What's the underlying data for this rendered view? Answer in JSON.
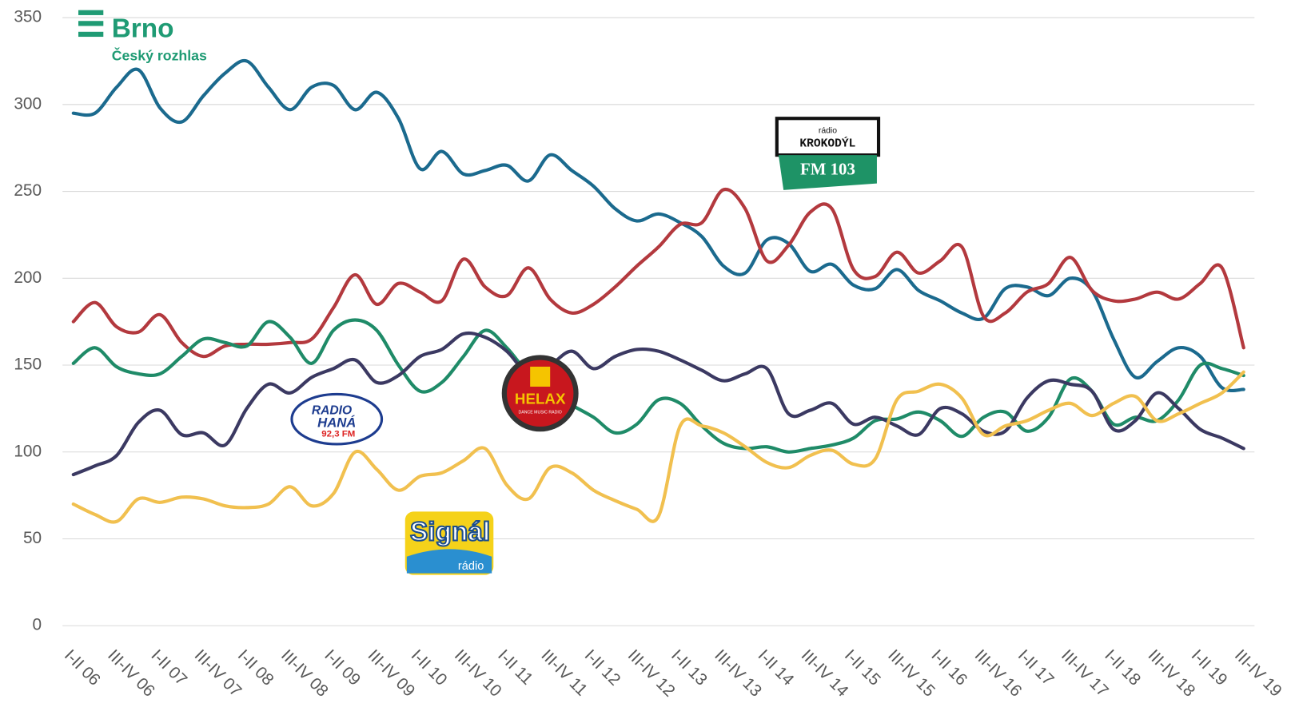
{
  "chart_data": {
    "type": "line",
    "categories": [
      "I-II 06",
      null,
      "III-IV 06",
      null,
      "I-II 07",
      null,
      "III-IV 07",
      null,
      "I-II 08",
      null,
      "III-IV 08",
      null,
      "I-II 09",
      null,
      "III-IV 09",
      null,
      "I-II 10",
      null,
      "III-IV 10",
      null,
      "I-II 11",
      null,
      "III-IV 11",
      null,
      "I-II 12",
      null,
      "III-IV 12",
      null,
      "I-II 13",
      null,
      "III-IV 13",
      null,
      "I-II 14",
      null,
      "III-IV 14",
      null,
      "I-II 15",
      null,
      "III-IV 15",
      null,
      "I-II 16",
      null,
      "III-IV 16",
      null,
      "I-II 17",
      null,
      "III-IV 17",
      null,
      "I-II 18",
      null,
      "III-IV 18",
      null,
      "I-II 19",
      null,
      "III-IV 19"
    ],
    "series": [
      {
        "color": "#1b6a8e",
        "values": [
          295,
          295,
          310,
          320,
          298,
          290,
          305,
          318,
          325,
          310,
          297,
          310,
          311,
          297,
          307,
          292,
          263,
          273,
          260,
          262,
          265,
          256,
          271,
          262,
          253,
          240,
          233,
          237,
          232,
          224,
          207,
          203,
          222,
          220,
          204,
          208,
          196,
          194,
          205,
          193,
          187,
          180,
          177,
          194,
          195,
          190,
          200,
          193,
          165,
          143,
          152,
          160,
          155,
          137,
          136
        ]
      },
      {
        "color": "#b3393e",
        "values": [
          175,
          186,
          172,
          169,
          179,
          163,
          155,
          161,
          162,
          162,
          163,
          165,
          183,
          202,
          185,
          197,
          192,
          187,
          211,
          195,
          190,
          206,
          188,
          180,
          185,
          195,
          207,
          218,
          231,
          232,
          251,
          240,
          210,
          219,
          238,
          240,
          205,
          201,
          215,
          203,
          210,
          218,
          178,
          180,
          192,
          197,
          212,
          193,
          187,
          188,
          192,
          188,
          197,
          206,
          160
        ]
      },
      {
        "color": "#1f8b68",
        "values": [
          151,
          160,
          149,
          145,
          145,
          155,
          165,
          163,
          161,
          175,
          166,
          151,
          170,
          176,
          170,
          150,
          135,
          140,
          155,
          170,
          160,
          145,
          135,
          127,
          120,
          111,
          116,
          130,
          128,
          115,
          105,
          102,
          103,
          100,
          102,
          104,
          108,
          118,
          119,
          123,
          118,
          109,
          120,
          123,
          112,
          120,
          142,
          135,
          116,
          120,
          118,
          130,
          150,
          148,
          144
        ]
      },
      {
        "color": "#3b3962",
        "values": [
          87,
          92,
          98,
          117,
          124,
          110,
          111,
          104,
          125,
          139,
          134,
          143,
          148,
          153,
          140,
          144,
          155,
          159,
          168,
          166,
          158,
          145,
          150,
          158,
          148,
          155,
          159,
          158,
          153,
          147,
          141,
          145,
          148,
          122,
          124,
          128,
          116,
          120,
          115,
          110,
          125,
          122,
          112,
          112,
          131,
          141,
          139,
          135,
          113,
          118,
          134,
          125,
          113,
          108,
          102
        ]
      },
      {
        "color": "#f1c04f",
        "values": [
          70,
          64,
          60,
          73,
          71,
          74,
          73,
          69,
          68,
          70,
          80,
          69,
          76,
          100,
          90,
          78,
          86,
          88,
          95,
          102,
          81,
          73,
          91,
          88,
          78,
          72,
          67,
          63,
          115,
          115,
          111,
          103,
          94,
          91,
          98,
          101,
          93,
          96,
          130,
          135,
          139,
          131,
          110,
          115,
          118,
          124,
          128,
          121,
          128,
          132,
          118,
          122,
          128,
          134,
          146
        ]
      }
    ],
    "ylim": [
      0,
      350
    ],
    "yticks": [
      0,
      50,
      100,
      150,
      200,
      250,
      300,
      350
    ],
    "grid": true,
    "annotations": [
      "Brno",
      "Český rozhlas",
      "rádio",
      "KROKODÝL",
      "FM 103",
      "RADIO",
      "HANÁ",
      "92,3 FM",
      "HELAX",
      "DANCE MUSIC RADIO",
      "Signál",
      "rádio"
    ]
  }
}
